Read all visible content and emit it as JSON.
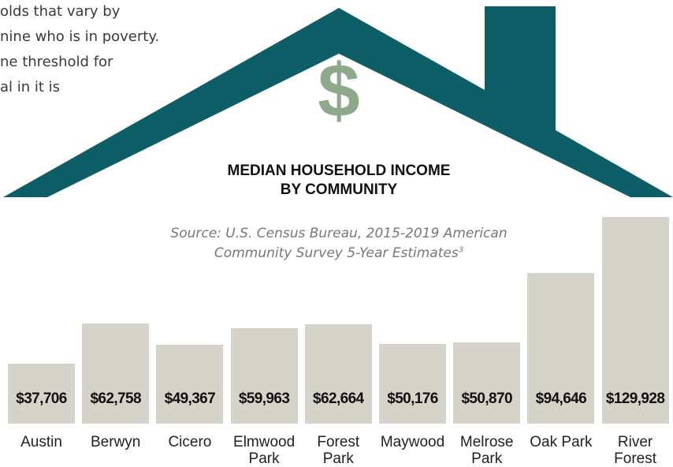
{
  "chart_data": {
    "type": "bar",
    "intro_lines": [
      "olds that vary by",
      "nine who is in poverty.",
      "ne threshold for",
      "al in it is"
    ],
    "icon": "$",
    "title": [
      "MEDIAN HOUSEHOLD INCOME",
      "BY COMMUNITY"
    ],
    "subtitle": [
      "Source: U.S. Census Bureau, 2015-2019 American",
      "Community Survey 5-Year Estimates"
    ],
    "subtitle_superscript": "3",
    "categories": [
      "Austin",
      "Berwyn",
      "Cicero",
      "Elmwood Park",
      "Forest Park",
      "Maywood",
      "Melrose Park",
      "Oak Park",
      "River Forest"
    ],
    "values": [
      37706,
      62758,
      49367,
      59963,
      62664,
      50176,
      50870,
      94646,
      129928
    ],
    "value_labels": [
      "$37,706",
      "$62,758",
      "$49,367",
      "$59,963",
      "$62,664",
      "$50,176",
      "$50,870",
      "$94,646",
      "$129,928"
    ],
    "color": "#d6d3cb"
  }
}
